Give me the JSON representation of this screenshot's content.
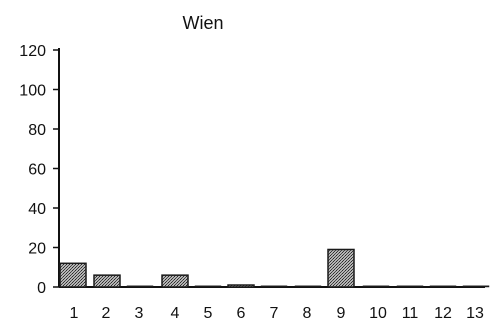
{
  "chart_data": {
    "type": "bar",
    "title": "Wien",
    "xlabel": "",
    "ylabel": "",
    "categories": [
      "1",
      "2",
      "3",
      "4",
      "5",
      "6",
      "7",
      "8",
      "9",
      "10",
      "11",
      "12",
      "13"
    ],
    "values": [
      12,
      6,
      0,
      6,
      0,
      1,
      0,
      0,
      19,
      0,
      0,
      0,
      0
    ],
    "ylim": [
      0,
      120
    ],
    "yticks": [
      "0",
      "20",
      "40",
      "60",
      "80",
      "100",
      "120"
    ],
    "grid": false,
    "legend": "none",
    "bar_fill": "#9a9a9a",
    "bar_edge": "#1a1a1a",
    "axis_color": "#111111"
  }
}
